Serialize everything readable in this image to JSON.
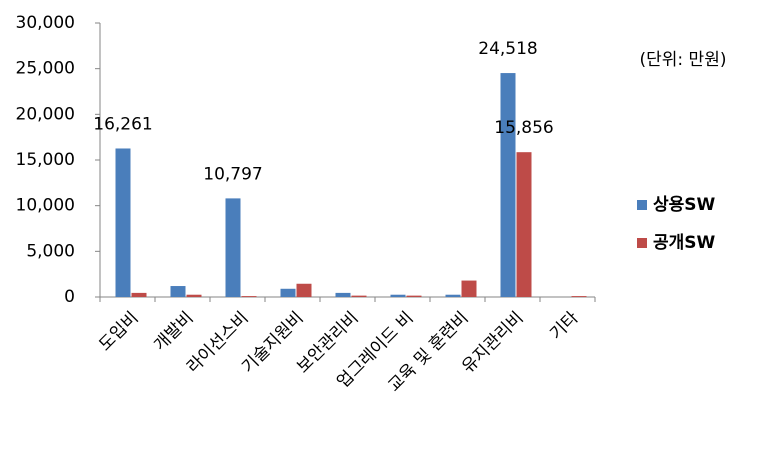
{
  "chart_data": {
    "type": "bar",
    "annotation": "(단위: 만원)",
    "categories": [
      "도입비",
      "개발비",
      "라이선스비",
      "기술지원비",
      "보안관리비",
      "업그레이드 비",
      "교육 및 훈련비",
      "유지관리비",
      "기타"
    ],
    "series": [
      {
        "name": "상용SW",
        "color": "#4a7ebb",
        "values": [
          16261,
          1200,
          10797,
          900,
          450,
          250,
          250,
          24518,
          0
        ],
        "value_labels": [
          "16,261",
          null,
          "10,797",
          null,
          null,
          null,
          null,
          "24,518",
          null
        ]
      },
      {
        "name": "공개SW",
        "color": "#be4b48",
        "values": [
          450,
          250,
          100,
          1450,
          150,
          150,
          1800,
          15856,
          100
        ],
        "value_labels": [
          null,
          null,
          null,
          null,
          null,
          null,
          null,
          "15,856",
          null
        ]
      }
    ],
    "ylim": [
      0,
      30000
    ],
    "yticks": [
      0,
      {
        "value": 5000,
        "label": "5,000"
      },
      {
        "value": 10000,
        "label": "10,000"
      },
      {
        "value": 15000,
        "label": "15,000"
      },
      {
        "value": 20000,
        "label": "20,000"
      },
      {
        "value": 25000,
        "label": "25,000"
      },
      {
        "value": 30000,
        "label": "30,000"
      }
    ],
    "grid": false,
    "legend": "right"
  }
}
